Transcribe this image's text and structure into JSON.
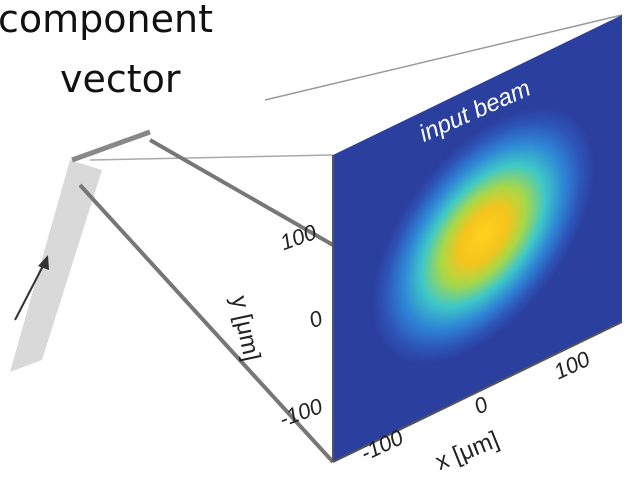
{
  "caption": {
    "line1": "component",
    "line2": "vector"
  },
  "panel": {
    "title": "input beam",
    "y_axis": {
      "label": "y [μm]",
      "ticks": [
        "100",
        "0",
        "-100"
      ]
    },
    "x_axis": {
      "label": "x [μm]",
      "ticks": [
        "-100",
        "0",
        "100"
      ]
    }
  }
}
